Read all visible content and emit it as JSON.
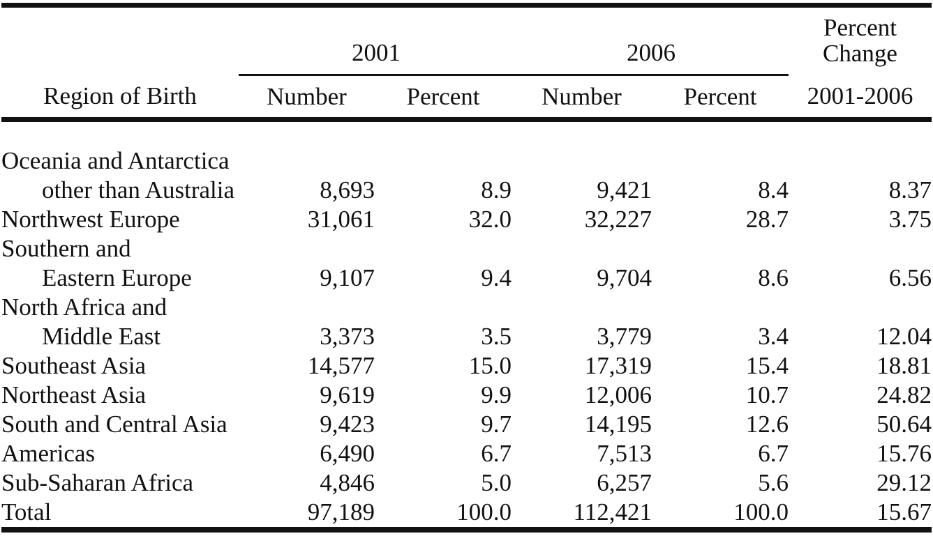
{
  "table": {
    "region_header": "Region of Birth",
    "year_groups": [
      "2001",
      "2006"
    ],
    "sub_headers": [
      "Number",
      "Percent",
      "Number",
      "Percent"
    ],
    "change_header": {
      "line1": "Percent",
      "line2": "Change",
      "range": "2001-2006"
    },
    "rows": [
      {
        "label_lines": [
          "Oceania and Antarctica",
          "other than Australia"
        ],
        "values": [
          "8,693",
          "8.9",
          "9,421",
          "8.4",
          "8.37"
        ]
      },
      {
        "label_lines": [
          "Northwest Europe"
        ],
        "values": [
          "31,061",
          "32.0",
          "32,227",
          "28.7",
          "3.75"
        ]
      },
      {
        "label_lines": [
          "Southern and",
          "Eastern Europe"
        ],
        "values": [
          "9,107",
          "9.4",
          "9,704",
          "8.6",
          "6.56"
        ]
      },
      {
        "label_lines": [
          "North Africa and",
          "Middle East"
        ],
        "values": [
          "3,373",
          "3.5",
          "3,779",
          "3.4",
          "12.04"
        ]
      },
      {
        "label_lines": [
          "Southeast Asia"
        ],
        "values": [
          "14,577",
          "15.0",
          "17,319",
          "15.4",
          "18.81"
        ]
      },
      {
        "label_lines": [
          "Northeast Asia"
        ],
        "values": [
          "9,619",
          "9.9",
          "12,006",
          "10.7",
          "24.82"
        ]
      },
      {
        "label_lines": [
          "South and Central Asia"
        ],
        "values": [
          "9,423",
          "9.7",
          "14,195",
          "12.6",
          "50.64"
        ]
      },
      {
        "label_lines": [
          "Americas"
        ],
        "values": [
          "6,490",
          "6.7",
          "7,513",
          "6.7",
          "15.76"
        ]
      },
      {
        "label_lines": [
          "Sub-Saharan Africa"
        ],
        "values": [
          "4,846",
          "5.0",
          "6,257",
          "5.6",
          "29.12"
        ]
      },
      {
        "label_lines": [
          "Total"
        ],
        "values": [
          "97,189",
          "100.0",
          "112,421",
          "100.0",
          "15.67"
        ]
      }
    ]
  }
}
